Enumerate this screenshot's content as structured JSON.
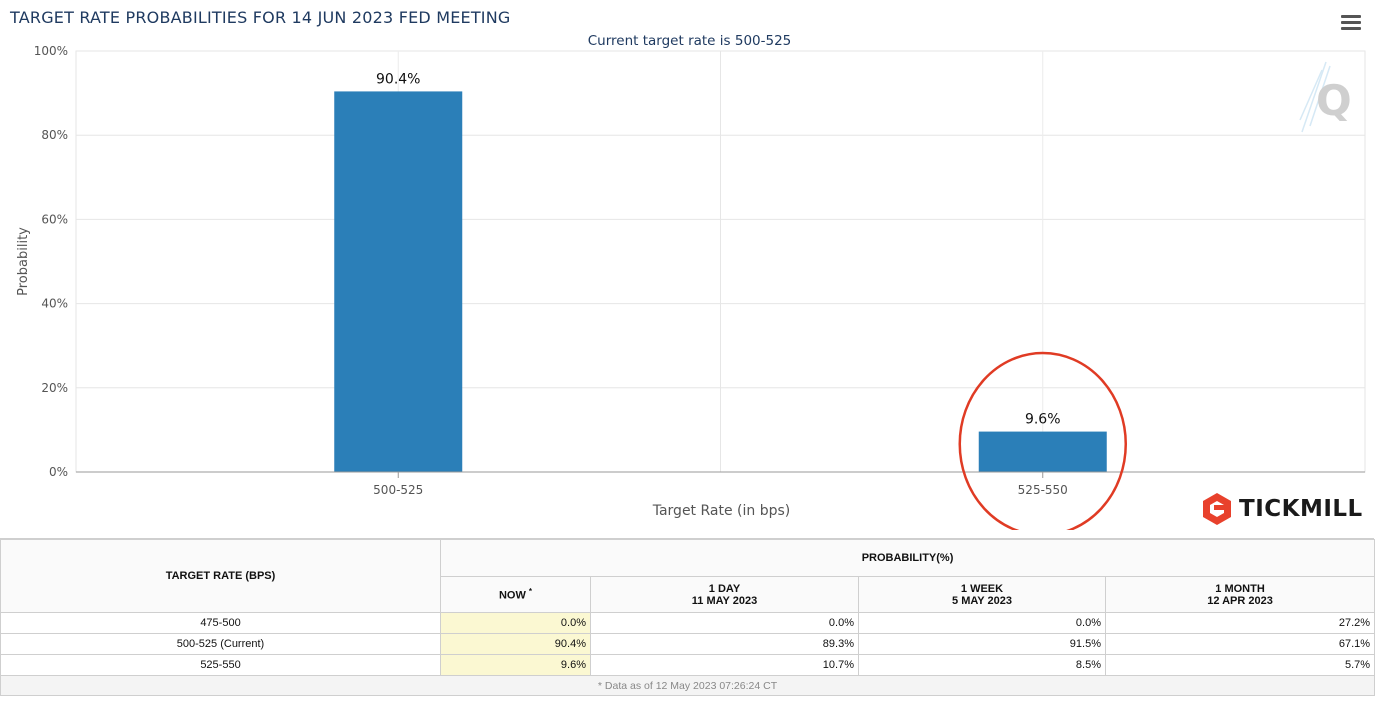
{
  "header": {
    "title": "TARGET RATE PROBABILITIES FOR 14 JUN 2023 FED MEETING",
    "subtitle": "Current target rate is 500-525",
    "menu_icon": "hamburger-menu-icon",
    "watermark_icon": "q-watermark-icon"
  },
  "chart_data": {
    "type": "bar",
    "title": "TARGET RATE PROBABILITIES FOR 14 JUN 2023 FED MEETING",
    "subtitle": "Current target rate is 500-525",
    "categories": [
      "500-525",
      "525-550"
    ],
    "values": [
      90.4,
      9.6
    ],
    "data_labels": [
      "90.4%",
      "9.6%"
    ],
    "xlabel": "Target Rate (in bps)",
    "ylabel": "Probability",
    "ylim": [
      0,
      100
    ],
    "yticks": [
      "0%",
      "20%",
      "40%",
      "60%",
      "80%",
      "100%"
    ],
    "grid": true,
    "bar_color": "#2b7fb8",
    "annotation": {
      "type": "circle",
      "target": "525-550",
      "color": "#e03b24"
    }
  },
  "brand": {
    "name": "TICKMILL",
    "logo_icon": "tickmill-hexagon-logo-icon",
    "logo_color": "#e8412c"
  },
  "table": {
    "rate_header": "TARGET RATE (BPS)",
    "prob_header": "PROBABILITY(%)",
    "columns": [
      {
        "line1": "NOW",
        "marker": "*",
        "line2": ""
      },
      {
        "line1": "1 DAY",
        "line2": "11 MAY 2023"
      },
      {
        "line1": "1 WEEK",
        "line2": "5 MAY 2023"
      },
      {
        "line1": "1 MONTH",
        "line2": "12 APR 2023"
      }
    ],
    "rows": [
      {
        "rate": "475-500",
        "values": [
          "0.0%",
          "0.0%",
          "0.0%",
          "27.2%"
        ]
      },
      {
        "rate": "500-525 (Current)",
        "values": [
          "90.4%",
          "89.3%",
          "91.5%",
          "67.1%"
        ]
      },
      {
        "rate": "525-550",
        "values": [
          "9.6%",
          "10.7%",
          "8.5%",
          "5.7%"
        ]
      }
    ],
    "footnote": "* Data as of 12 May 2023 07:26:24 CT"
  },
  "colors": {
    "now_highlight": "#fbf8d2",
    "title_text": "#1f3a60"
  }
}
